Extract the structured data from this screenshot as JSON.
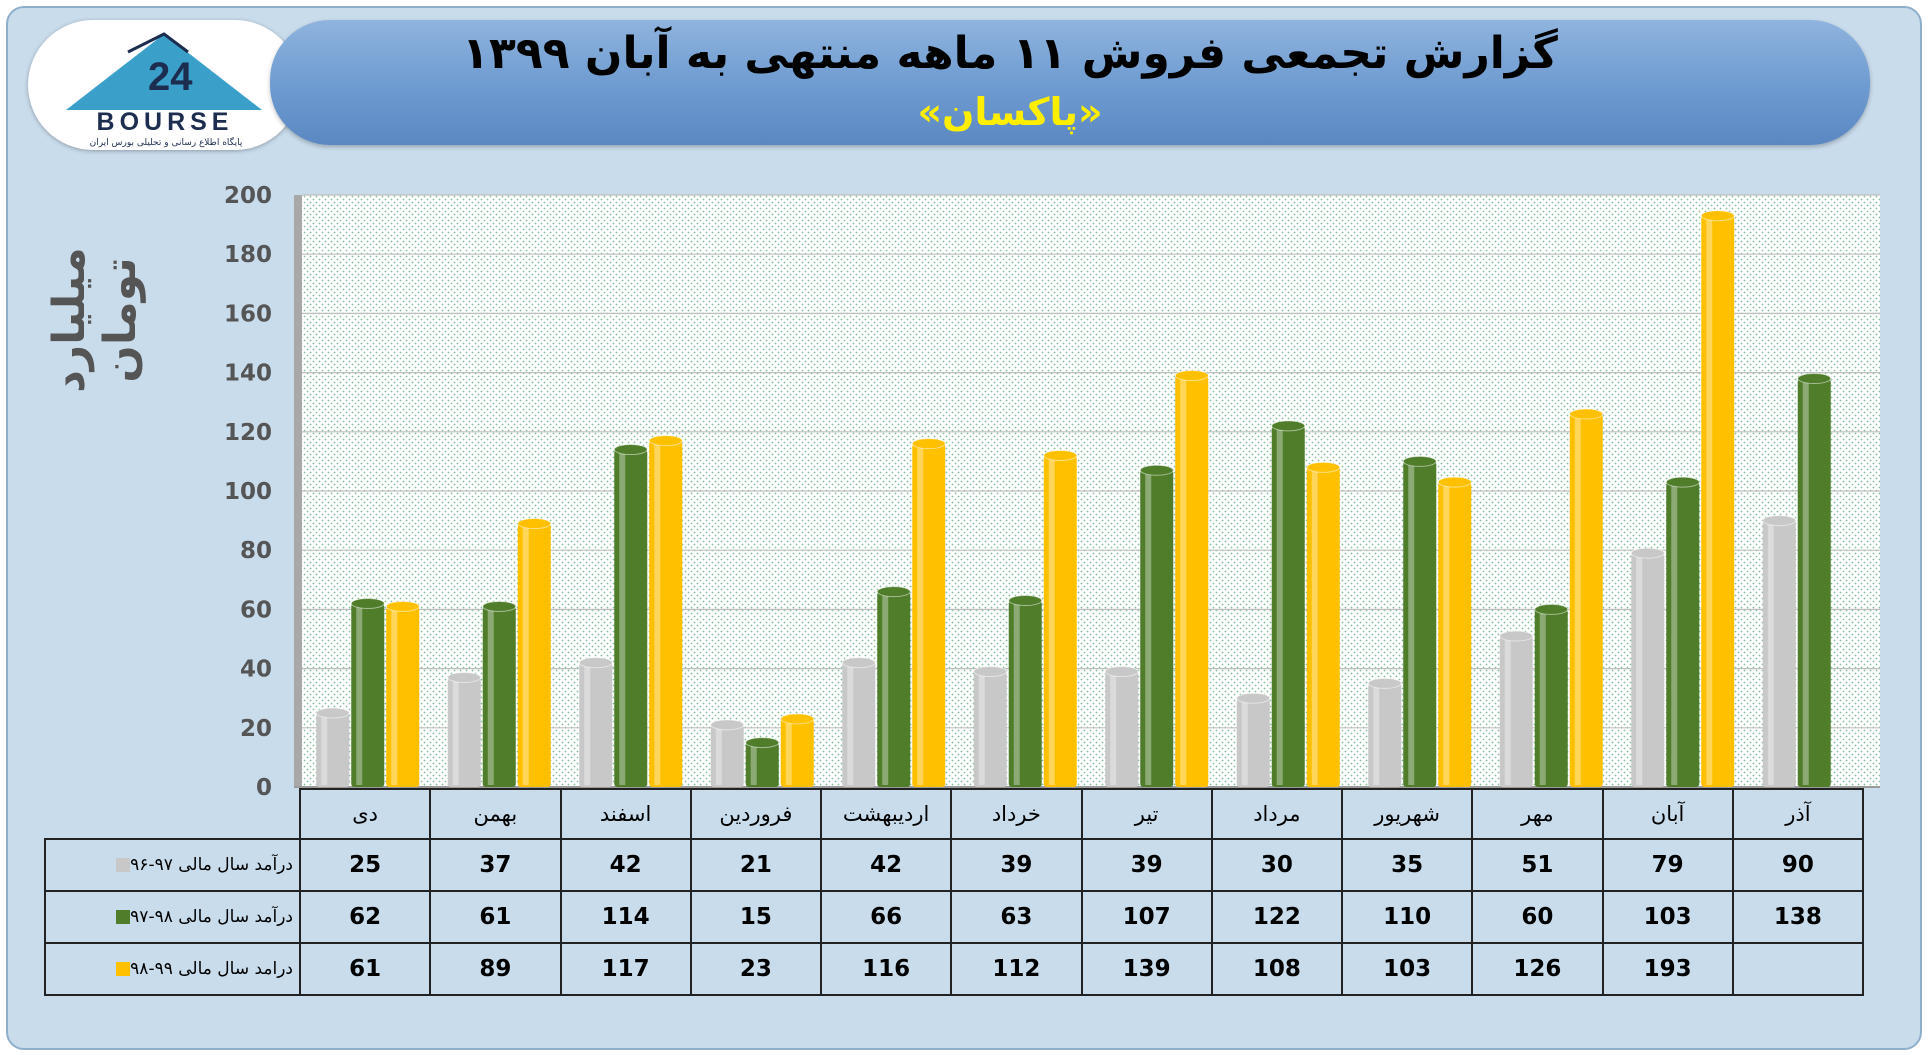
{
  "header": {
    "title": "گزارش تجمعی فروش ۱۱ ماهه منتهی به آبان ۱۳۹۹",
    "subtitle": "«پاکسان»"
  },
  "logo": {
    "text": "BOURSE",
    "subtitle": "پایگاه اطلاع رسانی و تحلیلی بورس ایران"
  },
  "colors": {
    "series_gray": "#c8c8c8",
    "series_green": "#4f7d2a",
    "series_yellow": "#ffc000",
    "header": "#6d9ad0",
    "frame": "#c9dcec"
  },
  "chart_data": {
    "type": "bar",
    "title": "گزارش تجمعی فروش ۱۱ ماهه منتهی به آبان ۱۳۹۹",
    "subtitle": "«پاکسان»",
    "ylabel": "میلیارد تومان",
    "ylim": [
      0,
      200
    ],
    "yticks": [
      0,
      20,
      40,
      60,
      80,
      100,
      120,
      140,
      160,
      180,
      200
    ],
    "grid": true,
    "categories": [
      "دی",
      "بهمن",
      "اسفند",
      "فروردین",
      "اردیبهشت",
      "خرداد",
      "تیر",
      "مرداد",
      "شهریور",
      "مهر",
      "آبان",
      "آذر"
    ],
    "series": [
      {
        "name": "درآمد سال مالی ۹۷-۹۶",
        "color": "#c8c8c8",
        "values": [
          25,
          37,
          42,
          21,
          42,
          39,
          39,
          30,
          35,
          51,
          79,
          90
        ]
      },
      {
        "name": "درآمد سال مالی ۹۸-۹۷",
        "color": "#4f7d2a",
        "values": [
          62,
          61,
          114,
          15,
          66,
          63,
          107,
          122,
          110,
          60,
          103,
          138
        ]
      },
      {
        "name": "درامد سال مالی ۹۹-۹۸",
        "color": "#ffc000",
        "values": [
          61,
          89,
          117,
          23,
          116,
          112,
          139,
          108,
          103,
          126,
          193,
          null
        ]
      }
    ]
  }
}
